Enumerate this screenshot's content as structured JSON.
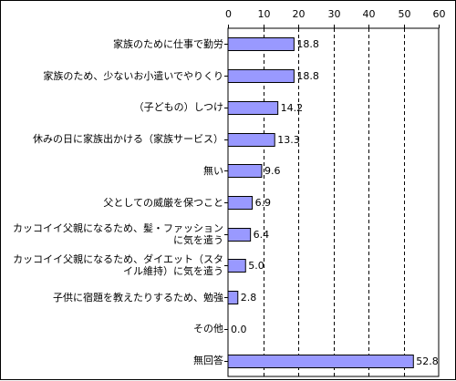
{
  "chart_data": {
    "type": "bar",
    "orientation": "horizontal",
    "title": "",
    "xlabel": "",
    "ylabel": "",
    "xlim": [
      0,
      60
    ],
    "xticks": [
      "0",
      "10",
      "20",
      "30",
      "40",
      "50",
      "60"
    ],
    "grid": "vertical dashed",
    "axis_position": "top",
    "bar_color": "#9999ff",
    "categories": [
      "家族のために仕事で勤労",
      "家族のため、少ないお小遣いでやりくり",
      "（子どもの）しつけ",
      "休みの日に家族出かける（家族サービス）",
      "無い",
      "父としての威厳を保つこと",
      "カッコイイ父親になるため、髪・ファッションに気を遣う",
      "カッコイイ父親になるため、ダイエット（スタイル維持）に気を遣う",
      "子供に宿題を教えたりするため、勉強",
      "その他",
      "無回答"
    ],
    "category_lines": [
      [
        "家族のために仕事で勤労"
      ],
      [
        "家族のため、少ないお小遣いでやりくり"
      ],
      [
        "（子どもの）しつけ"
      ],
      [
        "休みの日に家族出かける（家族サービス）"
      ],
      [
        "無い"
      ],
      [
        "父としての威厳を保つこと"
      ],
      [
        "カッコイイ父親になるため、髪・ファッションに気",
        "を遣う"
      ],
      [
        "カッコイイ父親になるため、ダイエット（スタイル",
        "維持）に気を遣う"
      ],
      [
        "子供に宿題を教えたりするため、勉強"
      ],
      [
        "その他"
      ],
      [
        "無回答"
      ]
    ],
    "values": [
      18.8,
      18.8,
      14.2,
      13.3,
      9.6,
      6.9,
      6.4,
      5.0,
      2.8,
      0.0,
      52.8
    ],
    "value_labels": [
      "18.8",
      "18.8",
      "14.2",
      "13.3",
      "9.6",
      "6.9",
      "6.4",
      "5.0",
      "2.8",
      "0.0",
      "52.8"
    ]
  }
}
